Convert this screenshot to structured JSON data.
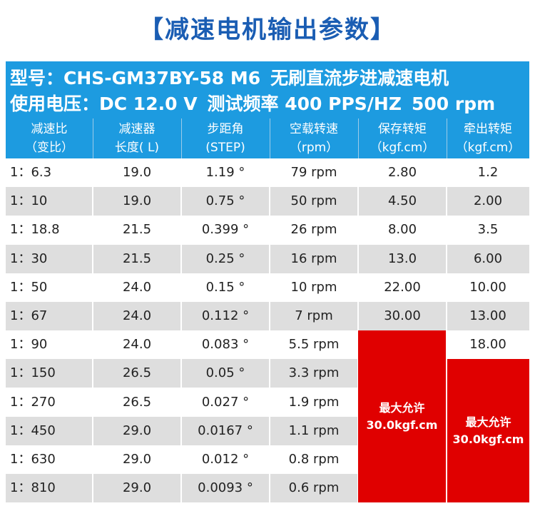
{
  "title": "【减速电机输出参数】",
  "spec": {
    "line1": [
      "型号：CHS-GM37BY-58 M6",
      "无刷直流步进减速电机"
    ],
    "line2": [
      "使用电压：DC 12.0 V",
      "测试频率 400 PPS/HZ",
      "500 rpm"
    ]
  },
  "columns": [
    {
      "line1": "减速比",
      "line2": "（变比）"
    },
    {
      "line1": "减速器",
      "line2": "长度( L)"
    },
    {
      "line1": "步距角",
      "line2": "(STEP)"
    },
    {
      "line1": "空载转速",
      "line2": "（rpm）"
    },
    {
      "line1": "保存转矩",
      "line2": "（kgf.cm）"
    },
    {
      "line1": "牵出转矩",
      "line2": "（kgf.cm）"
    }
  ],
  "rows": [
    {
      "ratio": "1：6.3",
      "length": "19.0",
      "step": "1.19 °",
      "speed": "79 rpm",
      "holding": "2.80",
      "pullout": "1.2"
    },
    {
      "ratio": "1：10",
      "length": "19.0",
      "step": "0.75 °",
      "speed": "50 rpm",
      "holding": "4.50",
      "pullout": "2.00"
    },
    {
      "ratio": "1：18.8",
      "length": "21.5",
      "step": "0.399 °",
      "speed": "26 rpm",
      "holding": "8.00",
      "pullout": "3.5"
    },
    {
      "ratio": "1：30",
      "length": "21.5",
      "step": "0.25 °",
      "speed": "16 rpm",
      "holding": "13.0",
      "pullout": "6.00"
    },
    {
      "ratio": "1：50",
      "length": "24.0",
      "step": "0.15 °",
      "speed": "10 rpm",
      "holding": "22.00",
      "pullout": "10.00"
    },
    {
      "ratio": "1：67",
      "length": "24.0",
      "step": "0.112 °",
      "speed": "7 rpm",
      "holding": "30.00",
      "pullout": "13.00"
    },
    {
      "ratio": "1：90",
      "length": "24.0",
      "step": "0.083 °",
      "speed": "5.5 rpm",
      "holding": "",
      "pullout": "18.00"
    },
    {
      "ratio": "1：150",
      "length": "26.5",
      "step": "0.05 °",
      "speed": "3.3 rpm",
      "holding": "",
      "pullout": ""
    },
    {
      "ratio": "1：270",
      "length": "26.5",
      "step": "0.027 °",
      "speed": "1.9 rpm",
      "holding": "",
      "pullout": ""
    },
    {
      "ratio": "1：450",
      "length": "29.0",
      "step": "0.0167 °",
      "speed": "1.1 rpm",
      "holding": "",
      "pullout": ""
    },
    {
      "ratio": "1：630",
      "length": "29.0",
      "step": "0.012 °",
      "speed": "0.8 rpm",
      "holding": "",
      "pullout": ""
    },
    {
      "ratio": "1：810",
      "length": "29.0",
      "step": "0.0093 °",
      "speed": "0.6 rpm",
      "holding": "",
      "pullout": ""
    }
  ],
  "holding_max": {
    "line1": "最大允许",
    "line2": "30.0kgf.cm"
  },
  "pullout_max": {
    "line1": "最大允许",
    "line2": "30.0kgf.cm"
  },
  "colors": {
    "header_blue": "#1d9be0",
    "title_blue": "#1a5db3",
    "red": "#e00000",
    "stripe": "#dedede"
  }
}
